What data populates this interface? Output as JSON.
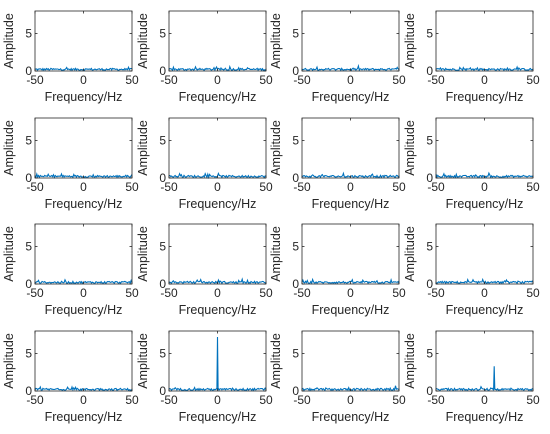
{
  "chart_data": {
    "type": "line",
    "layout": {
      "rows": 4,
      "cols": 4
    },
    "line_color": "#0072BD",
    "axes_color": "#262626",
    "grid": false,
    "xlabel": "Frequency/Hz",
    "ylabel": "Amplitude",
    "xlim": [
      -50,
      50
    ],
    "ylim": [
      0,
      8
    ],
    "xticks": [
      -50,
      0,
      50
    ],
    "yticks": [
      0,
      5
    ],
    "noise_level": 0.35,
    "panels": [
      {
        "peaks": []
      },
      {
        "peaks": []
      },
      {
        "peaks": []
      },
      {
        "peaks": []
      },
      {
        "peaks": []
      },
      {
        "peaks": []
      },
      {
        "peaks": []
      },
      {
        "peaks": []
      },
      {
        "peaks": []
      },
      {
        "peaks": []
      },
      {
        "peaks": []
      },
      {
        "peaks": []
      },
      {
        "peaks": []
      },
      {
        "peaks": [
          {
            "x": 0,
            "y": 7.2
          }
        ]
      },
      {
        "peaks": []
      },
      {
        "peaks": [
          {
            "x": 10,
            "y": 3.3
          }
        ]
      }
    ]
  }
}
